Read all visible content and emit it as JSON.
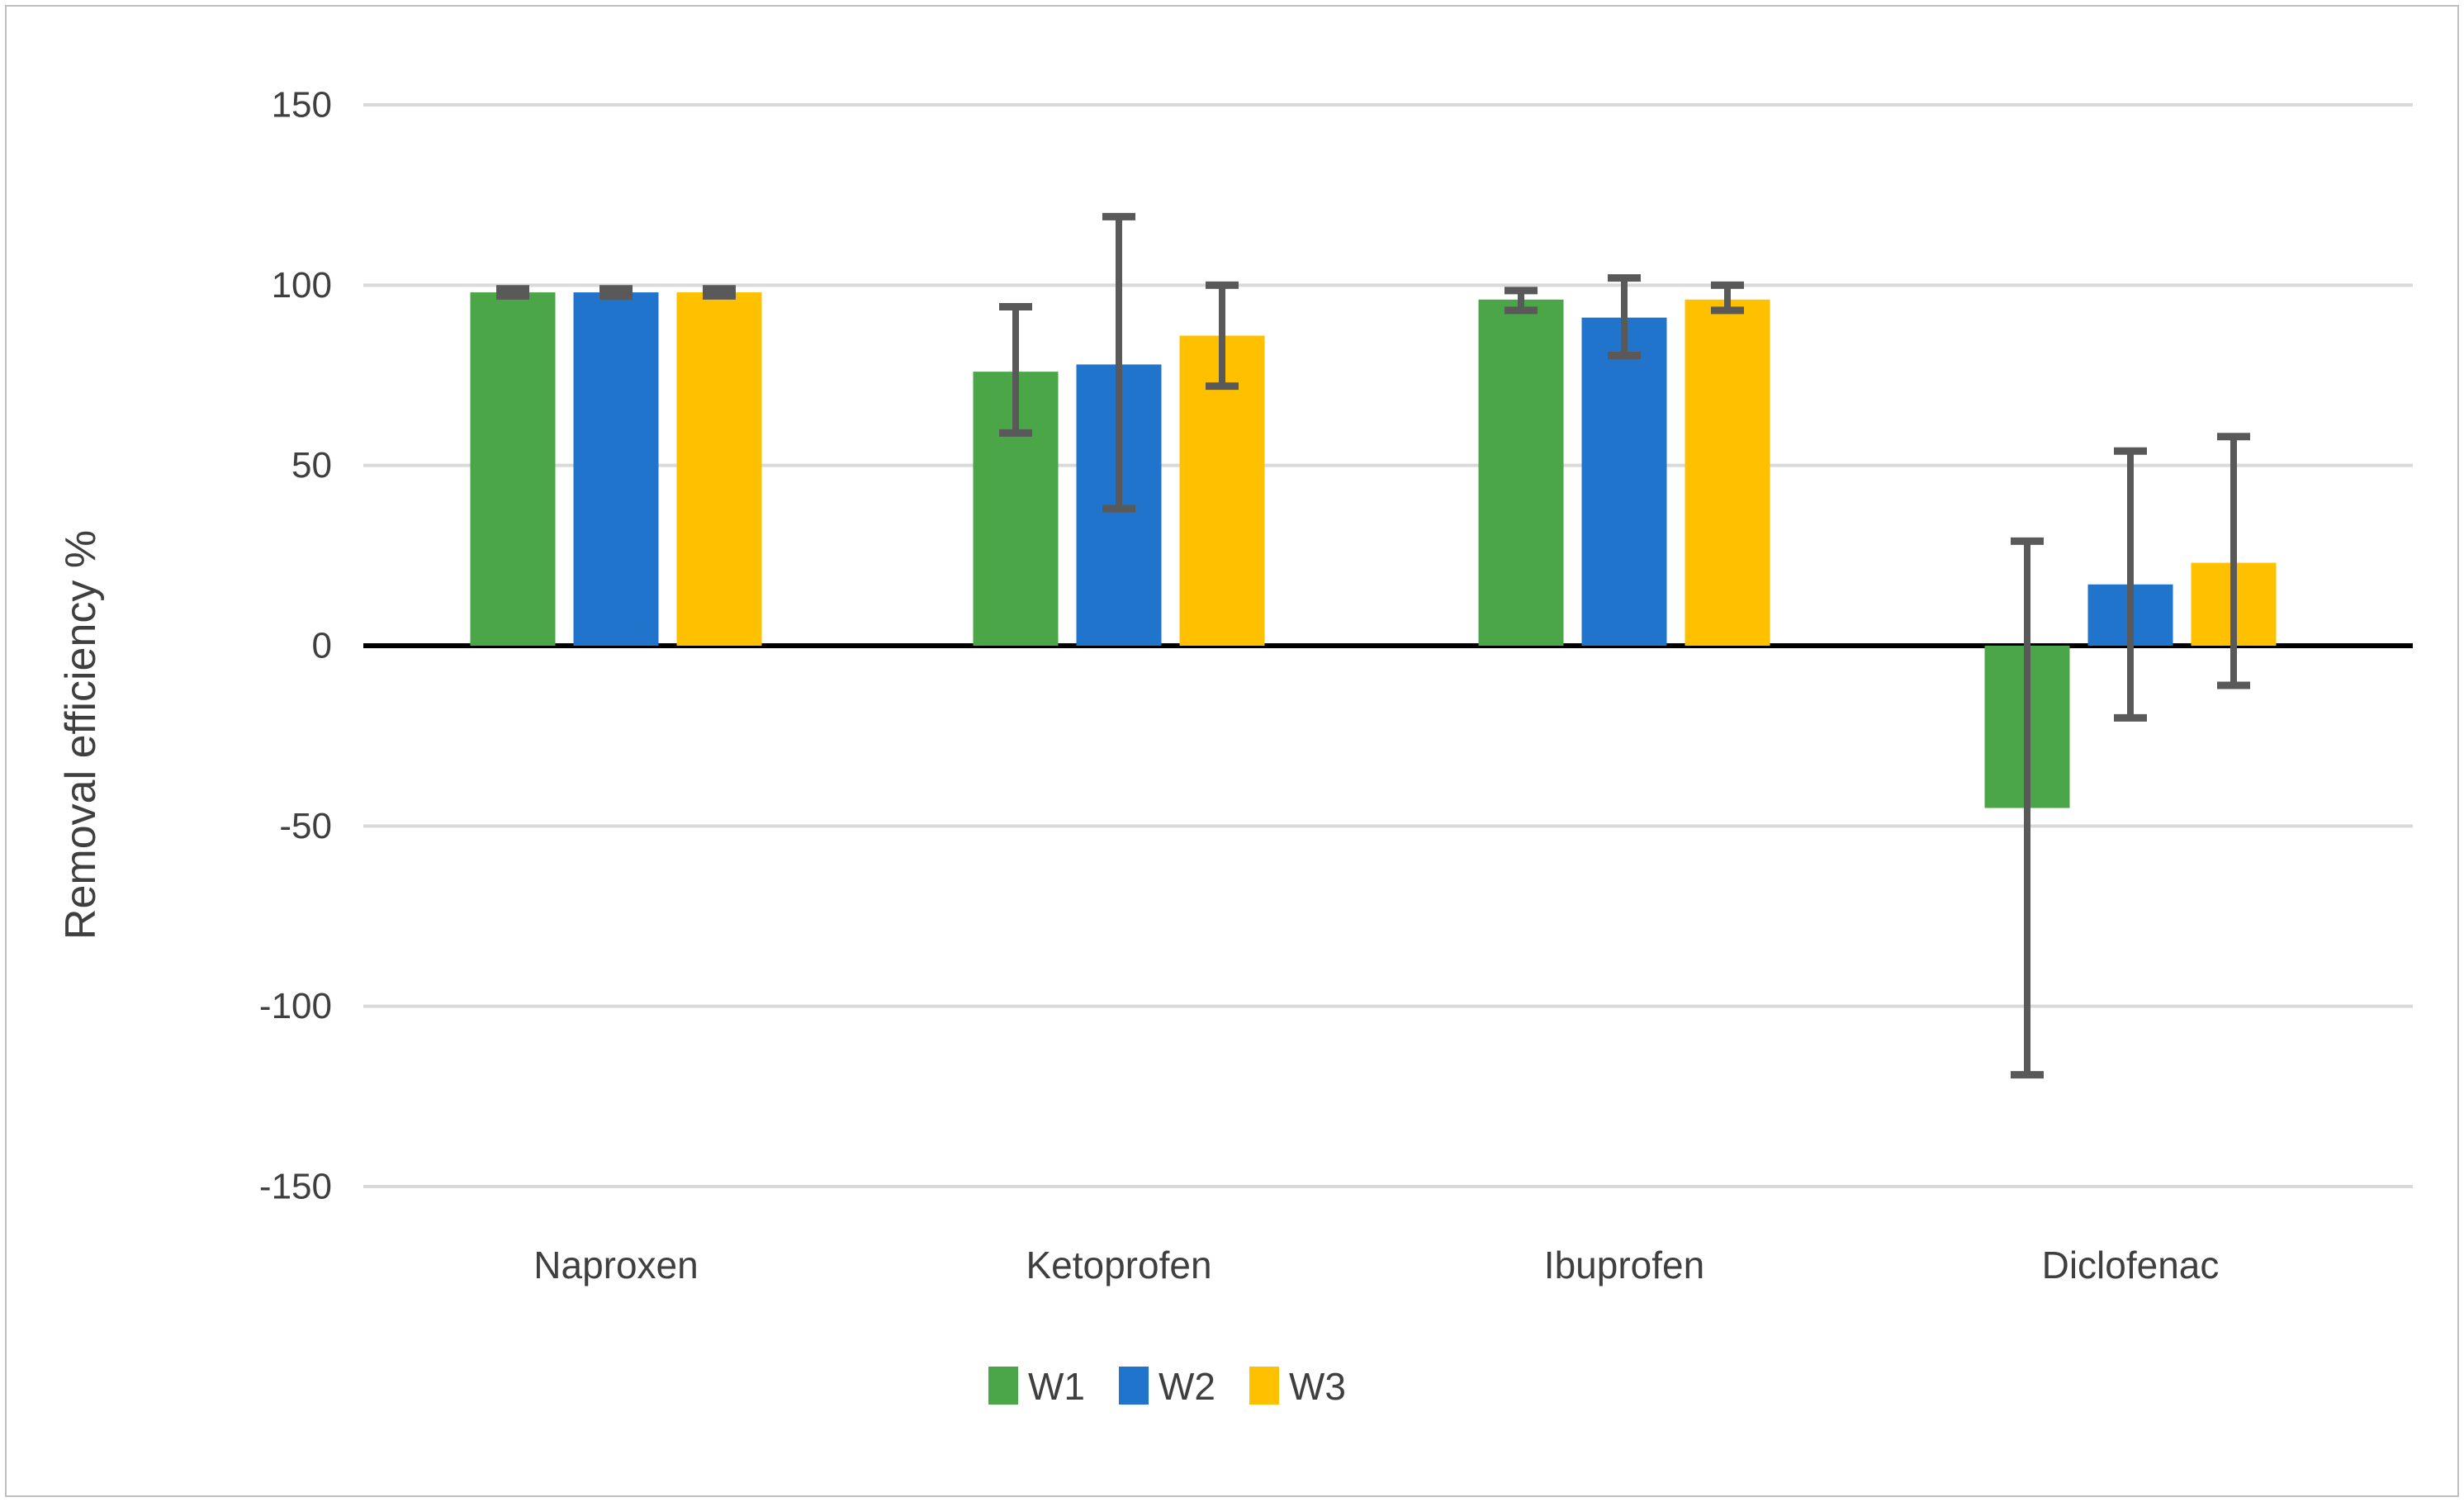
{
  "figure": {
    "title": "",
    "y_axis_title": "Removal efficiency %",
    "background_color": "#FFFFFF",
    "border_color": "#BFBFBF"
  },
  "chart_data": {
    "type": "bar",
    "title": "",
    "xlabel": "",
    "ylabel": "Removal efficiency %",
    "ylim": [
      -150,
      150
    ],
    "ytick_step": 50,
    "yticks": [
      150,
      100,
      50,
      0,
      -50,
      -100,
      -150
    ],
    "grid": true,
    "legend_position": "bottom",
    "categories": [
      "Naproxen",
      "Ketoprofen",
      "Ibuprofen",
      "Diclofenac"
    ],
    "series": [
      {
        "name": "W1",
        "color": "#4BA648",
        "values": [
          98,
          76,
          96,
          -45
        ],
        "error_plus": [
          1,
          18,
          2.5,
          74
        ],
        "error_minus": [
          1,
          17,
          3,
          74
        ]
      },
      {
        "name": "W2",
        "color": "#2074CC",
        "values": [
          98,
          78,
          91,
          17
        ],
        "error_plus": [
          1,
          41,
          11,
          37
        ],
        "error_minus": [
          1,
          40,
          10.5,
          37
        ]
      },
      {
        "name": "W3",
        "color": "#FFC000",
        "values": [
          98,
          86,
          96,
          23
        ],
        "error_plus": [
          1,
          14,
          4,
          35
        ],
        "error_minus": [
          1,
          14,
          3,
          34
        ]
      }
    ],
    "error_bar_color": "#595959",
    "gridline_color": "#D9D9D9",
    "zero_line_color": "#000000",
    "text_color": "#3F3F3F"
  }
}
